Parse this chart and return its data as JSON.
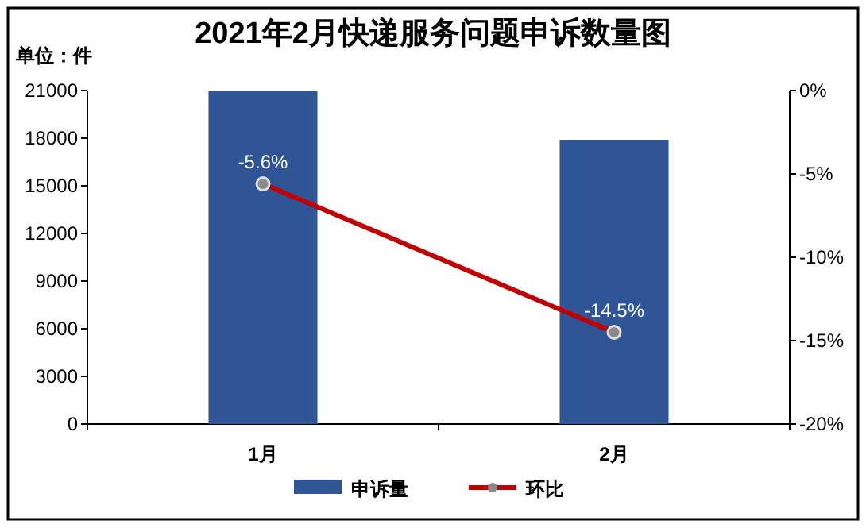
{
  "chart_data": {
    "type": "bar",
    "title": "2021年2月快递服务问题申诉数量图",
    "ylabel": "单位：件",
    "categories": [
      "1月",
      "2月"
    ],
    "series": [
      {
        "name": "申诉量",
        "color": "#2f5597",
        "values": [
          21000,
          17900
        ]
      },
      {
        "name": "环比",
        "type": "line",
        "axis": "y2",
        "color": "#c00000",
        "values": [
          -5.6,
          -14.5
        ],
        "value_labels": [
          "-5.6%",
          "-14.5%"
        ]
      }
    ],
    "ylim": [
      0,
      21000
    ],
    "yticks": [
      0,
      3000,
      6000,
      9000,
      12000,
      15000,
      18000,
      21000
    ],
    "y2lim": [
      -20,
      0
    ],
    "y2ticks": [
      {
        "value": -20,
        "label": "-20%"
      },
      {
        "value": -15,
        "label": "-15%"
      },
      {
        "value": -10,
        "label": "-10%"
      },
      {
        "value": -5,
        "label": "-5%"
      },
      {
        "value": 0,
        "label": "0%"
      }
    ],
    "marker": "circle",
    "line_style": "solid",
    "grid": false,
    "legend": "bottom"
  }
}
